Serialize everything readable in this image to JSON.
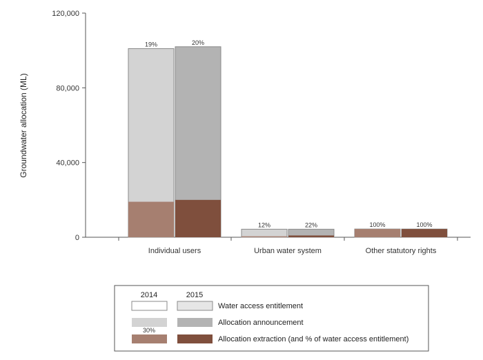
{
  "chart_data": {
    "type": "bar",
    "ylabel": "Groundwater allocation (ML)",
    "ylim": [
      0,
      120000
    ],
    "yticks": [
      {
        "value": 0,
        "label": "0"
      },
      {
        "value": 40000,
        "label": "40,000"
      },
      {
        "value": 80000,
        "label": "80,000"
      },
      {
        "value": 120000,
        "label": "120,000"
      }
    ],
    "categories": [
      "Individual users",
      "Urban water system",
      "Other statutory rights"
    ],
    "years": [
      "2014",
      "2015"
    ],
    "series": [
      {
        "name": "Water access entitlement",
        "values_2014": [
          101000,
          4300,
          4400
        ],
        "values_2015": [
          102000,
          4300,
          4400
        ]
      },
      {
        "name": "Allocation announcement",
        "values_2014": [
          101000,
          4300,
          4400
        ],
        "values_2015": [
          102000,
          4300,
          4400
        ]
      },
      {
        "name": "Allocation extraction (and % of water access entitlement)",
        "values_2014": [
          19000,
          500,
          4400
        ],
        "values_2015": [
          20000,
          950,
          4400
        ]
      }
    ],
    "bar_labels_2014": [
      "19%",
      "12%",
      "100%"
    ],
    "bar_labels_2015": [
      "20%",
      "22%",
      "100%"
    ],
    "legend_placement": "bottom-center",
    "legend_sample_label": "30%",
    "colors": {
      "entitlement_2014": "#ffffff",
      "entitlement_2015": "#e6e6e6",
      "announcement_2014": "#d3d3d3",
      "announcement_2015": "#b3b3b3",
      "extraction_2014": "#a67f70",
      "extraction_2015": "#7f4f3d",
      "border": "#8a8a8a"
    },
    "grid": false
  }
}
